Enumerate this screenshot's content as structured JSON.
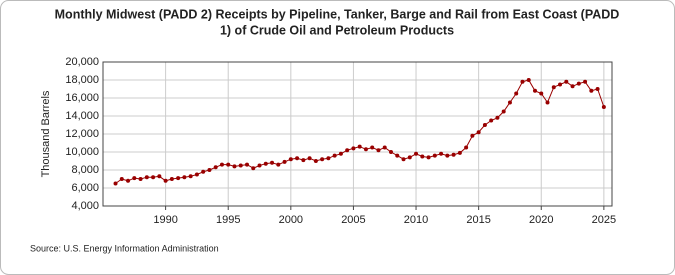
{
  "chart_data": {
    "type": "line",
    "title": [
      "Monthly Midwest (PADD 2) Receipts by Pipeline, Tanker, Barge and Rail from East Coast (PADD",
      "1) of Crude Oil and Petroleum Products"
    ],
    "y_label": "Thousand Barrels",
    "source": "Source: U.S. Energy Information Administration",
    "x": [
      1986.0,
      1986.5,
      1987.0,
      1987.5,
      1988.0,
      1988.5,
      1989.0,
      1989.5,
      1990.0,
      1990.5,
      1991.0,
      1991.5,
      1992.0,
      1992.5,
      1993.0,
      1993.5,
      1994.0,
      1994.5,
      1995.0,
      1995.5,
      1996.0,
      1996.5,
      1997.0,
      1997.5,
      1998.0,
      1998.5,
      1999.0,
      1999.5,
      2000.0,
      2000.5,
      2001.0,
      2001.5,
      2002.0,
      2002.5,
      2003.0,
      2003.5,
      2004.0,
      2004.5,
      2005.0,
      2005.5,
      2006.0,
      2006.5,
      2007.0,
      2007.5,
      2008.0,
      2008.5,
      2009.0,
      2009.5,
      2010.0,
      2010.5,
      2011.0,
      2011.5,
      2012.0,
      2012.5,
      2013.0,
      2013.5,
      2014.0,
      2014.5,
      2015.0,
      2015.5,
      2016.0,
      2016.5,
      2017.0,
      2017.5,
      2018.0,
      2018.5,
      2019.0,
      2019.5,
      2020.0,
      2020.5,
      2021.0,
      2021.5,
      2022.0,
      2022.5,
      2023.0,
      2023.5,
      2024.0,
      2024.5,
      2025.0
    ],
    "series": [
      {
        "name": "Receipts",
        "color": "#990000",
        "values": [
          6500,
          7000,
          6800,
          7100,
          7000,
          7200,
          7200,
          7300,
          6800,
          7000,
          7100,
          7200,
          7300,
          7500,
          7800,
          8000,
          8300,
          8600,
          8600,
          8400,
          8500,
          8600,
          8200,
          8500,
          8700,
          8800,
          8600,
          8900,
          9200,
          9300,
          9100,
          9300,
          9000,
          9200,
          9300,
          9600,
          9800,
          10200,
          10400,
          10600,
          10300,
          10500,
          10200,
          10500,
          10000,
          9600,
          9200,
          9400,
          9800,
          9500,
          9400,
          9600,
          9800,
          9600,
          9700,
          9900,
          10500,
          11800,
          12200,
          13000,
          13500,
          13800,
          14500,
          15500,
          16500,
          17800,
          18000,
          16800,
          16500,
          15500,
          17200,
          17500,
          17800,
          17300,
          17600,
          17800,
          16800,
          17000,
          15000
        ]
      }
    ],
    "xlim": [
      1985,
      2025.65
    ],
    "xticks": [
      1990,
      1995,
      2000,
      2005,
      2010,
      2015,
      2020,
      2025
    ],
    "ylim": [
      4000,
      20000
    ],
    "yticks": [
      {
        "value": 4000,
        "label": "4,000"
      },
      {
        "value": 6000,
        "label": "6,000"
      },
      {
        "value": 8000,
        "label": "8,000"
      },
      {
        "value": 10000,
        "label": "10,000"
      },
      {
        "value": 12000,
        "label": "12,000"
      },
      {
        "value": 14000,
        "label": "14,000"
      },
      {
        "value": 16000,
        "label": "16,000"
      },
      {
        "value": 18000,
        "label": "18,000"
      },
      {
        "value": 20000,
        "label": "20,000"
      }
    ],
    "grid": true
  }
}
